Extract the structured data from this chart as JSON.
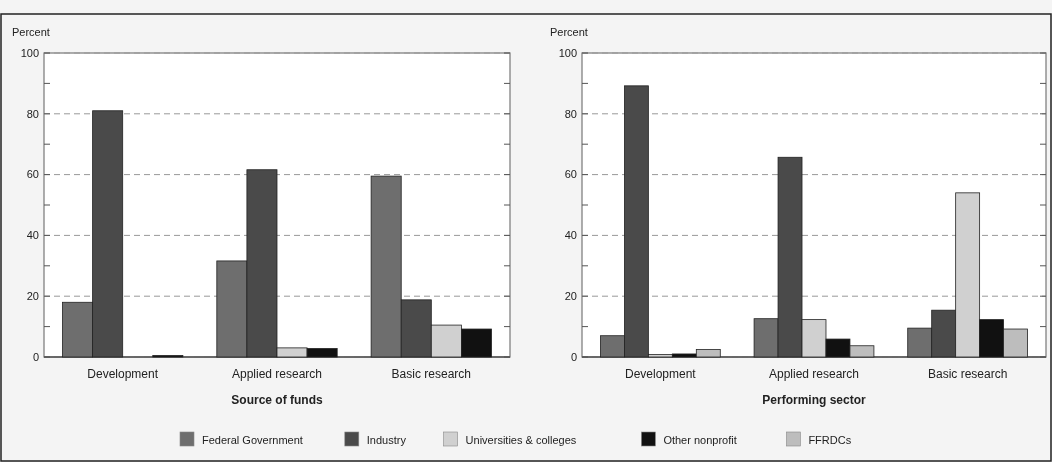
{
  "chart_data": [
    {
      "type": "bar",
      "xlabel": "Source of funds",
      "ylabel": "Percent",
      "categories": [
        "Development",
        "Applied research",
        "Basic research"
      ],
      "ylim": [
        0,
        100
      ],
      "yticks": [
        0,
        {
          "value": 10,
          "label": null
        },
        20,
        {
          "value": 30,
          "label": null
        },
        40,
        {
          "value": 50,
          "label": null
        },
        60,
        {
          "value": 70,
          "label": null
        },
        80,
        {
          "value": 90,
          "label": null
        },
        100
      ],
      "grid": "y",
      "legend": false,
      "series": [
        {
          "color": "#6e6e6e",
          "values": [
            18,
            31.6,
            59.5
          ]
        },
        {
          "color": "#4a4a4a",
          "values": [
            81,
            61.6,
            18.8
          ]
        },
        {
          "color": "#d0d0d0",
          "values": [
            null,
            3,
            10.5
          ]
        },
        {
          "color": "#111111",
          "values": [
            0.5,
            2.8,
            9.2
          ]
        }
      ]
    },
    {
      "type": "bar",
      "xlabel": "Performing sector",
      "ylabel": "Percent",
      "categories": [
        "Development",
        "Applied research",
        "Basic research"
      ],
      "ylim": [
        0,
        100
      ],
      "yticks": [
        0,
        {
          "value": 10,
          "label": null
        },
        20,
        {
          "value": 30,
          "label": null
        },
        40,
        {
          "value": 50,
          "label": null
        },
        60,
        {
          "value": 70,
          "label": null
        },
        80,
        {
          "value": 90,
          "label": null
        },
        100
      ],
      "grid": "y",
      "legend": "bottom",
      "series": [
        {
          "name": "Federal Government",
          "color": "#6e6e6e",
          "values": [
            7,
            12.6,
            9.5
          ]
        },
        {
          "name": "Industry",
          "color": "#4a4a4a",
          "values": [
            89.2,
            65.7,
            15.4
          ]
        },
        {
          "name": "Universities & colleges",
          "color": "#d0d0d0",
          "values": [
            0.8,
            12.3,
            54
          ]
        },
        {
          "name": "Other nonprofit",
          "color": "#111111",
          "values": [
            1,
            5.9,
            12.3
          ]
        },
        {
          "name": "FFRDCs",
          "color": "#bdbdbd",
          "values": [
            2.5,
            3.7,
            9.2
          ]
        }
      ]
    }
  ]
}
